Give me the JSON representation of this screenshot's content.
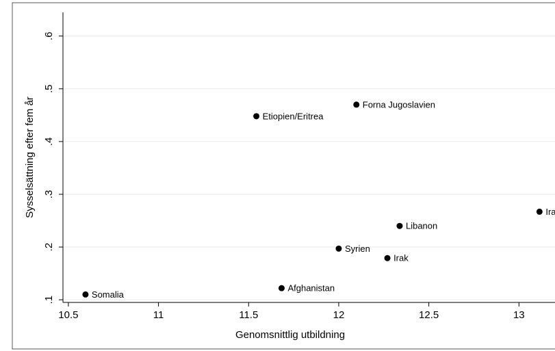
{
  "chart_data": {
    "type": "scatter",
    "x_label": "Genomsnittlig utbildning",
    "y_label": "Sysselsättning efter fem år",
    "x": [
      10.595,
      11.683,
      11.543,
      12.098,
      12.0,
      12.27,
      12.338,
      13.114
    ],
    "values": [
      0.11,
      0.122,
      0.448,
      0.47,
      0.197,
      0.179,
      0.24,
      0.267
    ],
    "point_labels": [
      "Somalia",
      "Afghanistan",
      "Etiopien/Eritrea",
      "Forna Jugoslavien",
      "Syrien",
      "Irak",
      "Libanon",
      "Ira"
    ],
    "color": "#000000",
    "xlim": [
      10.47,
      13.2
    ],
    "ylim": [
      0.095,
      0.645
    ],
    "xticks": [
      10.5,
      11,
      11.5,
      12,
      12.5,
      13
    ],
    "yticks": [
      {
        "value": 0.1,
        "label": ".1"
      },
      {
        "value": 0.2,
        "label": ".2"
      },
      {
        "value": 0.3,
        "label": ".3"
      },
      {
        "value": 0.4,
        "label": ".4"
      },
      {
        "value": 0.5,
        "label": ".5"
      },
      {
        "value": 0.6,
        "label": ".6"
      }
    ],
    "grid": true
  }
}
